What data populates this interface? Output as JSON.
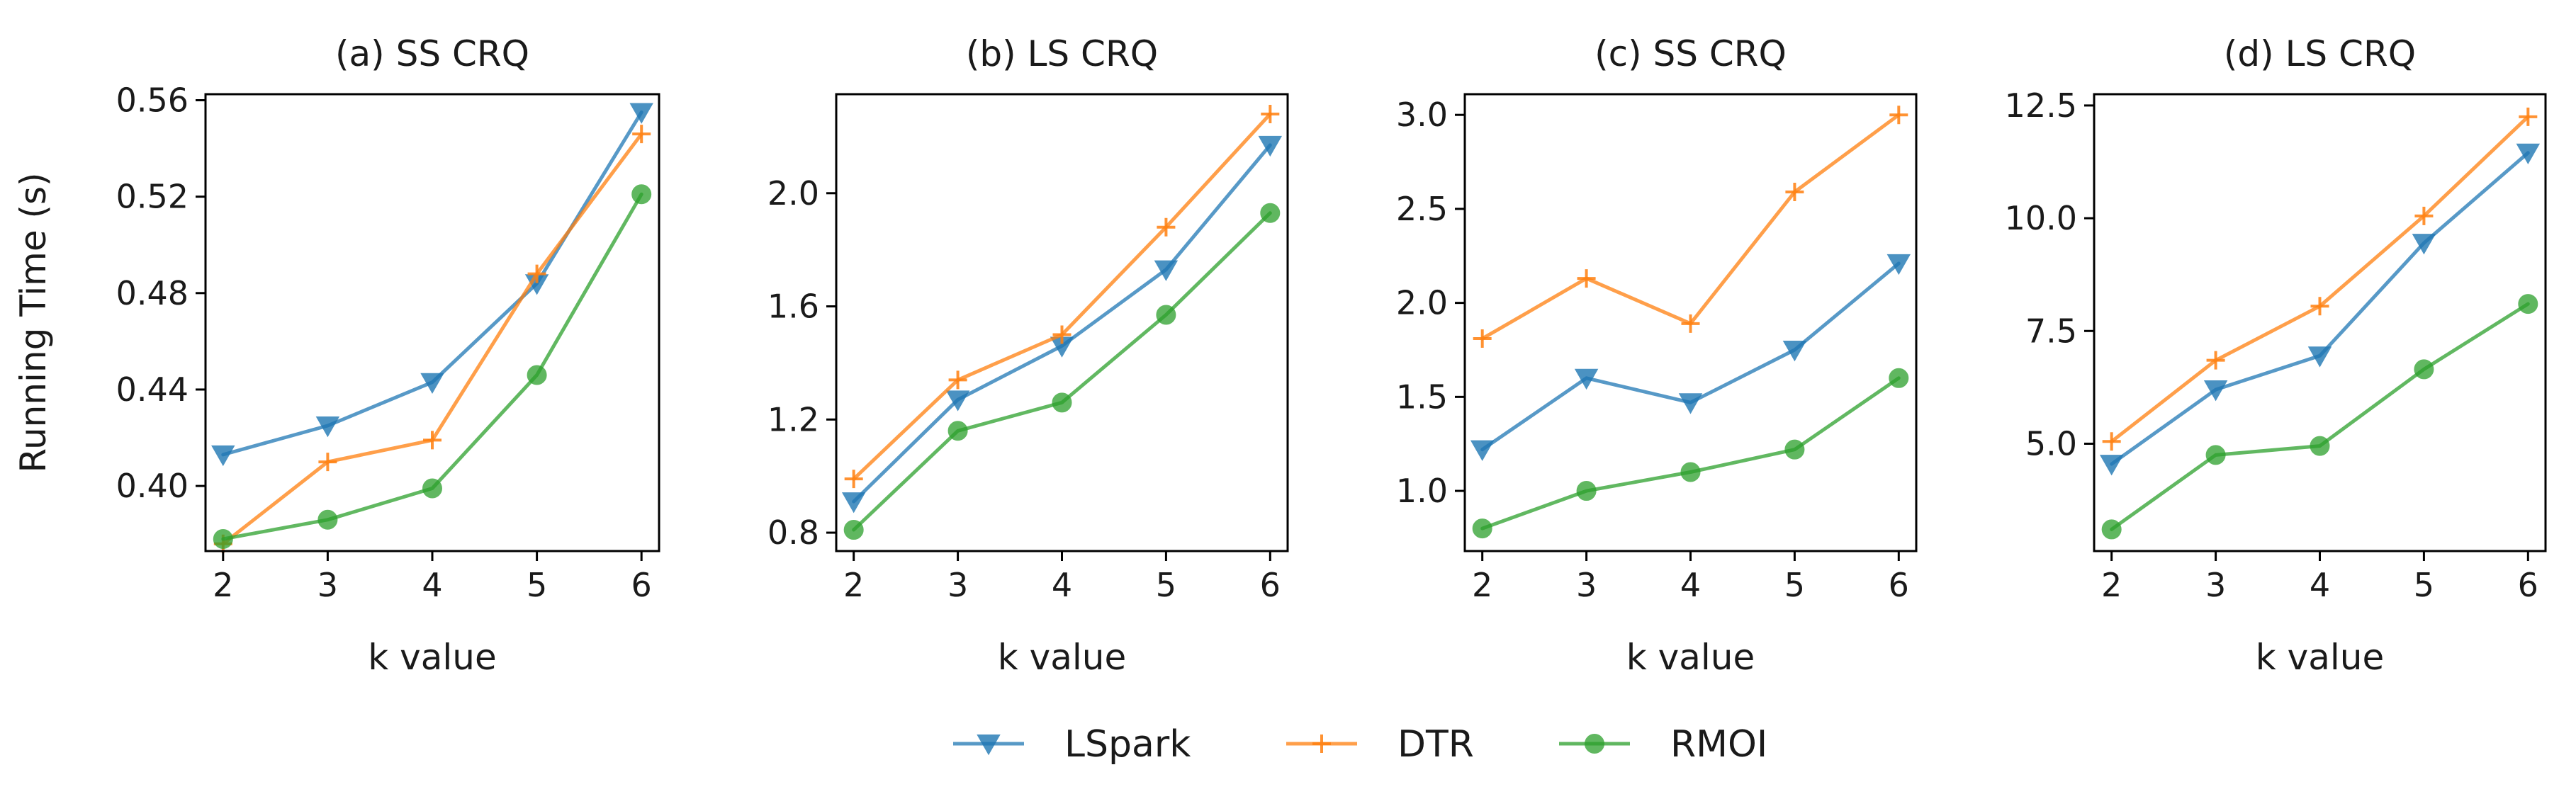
{
  "figure": {
    "ylabel": "Running Time (s)",
    "legend_position": "bottom-center"
  },
  "series_styles": [
    {
      "name": "LSpark",
      "color": "#1f77b4",
      "marker": "triangle-down-icon"
    },
    {
      "name": "DTR",
      "color": "#ff7f0e",
      "marker": "plus-icon"
    },
    {
      "name": "RMOI",
      "color": "#2ca02c",
      "marker": "circle-icon"
    }
  ],
  "chart_data": [
    {
      "type": "line",
      "title": "(a) SS CRQ",
      "xlabel": "k value",
      "ylabel": "Running Time (s)",
      "x": [
        2,
        3,
        4,
        5,
        6
      ],
      "xticks": [
        "2",
        "3",
        "4",
        "5",
        "6"
      ],
      "yticks": [
        0.4,
        0.44,
        0.48,
        0.52,
        0.56
      ],
      "ytick_labels": [
        "0.40",
        "0.44",
        "0.48",
        "0.52",
        "0.56"
      ],
      "ylim": [
        0.373,
        0.5625
      ],
      "series": [
        {
          "name": "LSpark",
          "values": [
            0.413,
            0.425,
            0.443,
            0.484,
            0.555
          ]
        },
        {
          "name": "DTR",
          "values": [
            0.376,
            0.41,
            0.419,
            0.488,
            0.546
          ]
        },
        {
          "name": "RMOI",
          "values": [
            0.378,
            0.386,
            0.399,
            0.446,
            0.521
          ]
        }
      ]
    },
    {
      "type": "line",
      "title": "(b) LS CRQ",
      "xlabel": "k value",
      "ylabel": "",
      "x": [
        2,
        3,
        4,
        5,
        6
      ],
      "xticks": [
        "2",
        "3",
        "4",
        "5",
        "6"
      ],
      "yticks": [
        0.8,
        1.2,
        1.6,
        2.0
      ],
      "ytick_labels": [
        "0.8",
        "1.2",
        "1.6",
        "2.0"
      ],
      "ylim": [
        0.735,
        2.35
      ],
      "series": [
        {
          "name": "LSpark",
          "values": [
            0.91,
            1.27,
            1.46,
            1.73,
            2.17
          ]
        },
        {
          "name": "DTR",
          "values": [
            0.99,
            1.34,
            1.5,
            1.88,
            2.28
          ]
        },
        {
          "name": "RMOI",
          "values": [
            0.81,
            1.16,
            1.26,
            1.57,
            1.93
          ]
        }
      ]
    },
    {
      "type": "line",
      "title": "(c) SS CRQ",
      "xlabel": "k value",
      "ylabel": "",
      "x": [
        2,
        3,
        4,
        5,
        6
      ],
      "xticks": [
        "2",
        "3",
        "4",
        "5",
        "6"
      ],
      "yticks": [
        1.0,
        1.5,
        2.0,
        2.5,
        3.0
      ],
      "ytick_labels": [
        "1.0",
        "1.5",
        "2.0",
        "2.5",
        "3.0"
      ],
      "ylim": [
        0.68,
        3.11
      ],
      "series": [
        {
          "name": "LSpark",
          "values": [
            1.22,
            1.6,
            1.47,
            1.75,
            2.21
          ]
        },
        {
          "name": "DTR",
          "values": [
            1.81,
            2.13,
            1.89,
            2.59,
            3.0
          ]
        },
        {
          "name": "RMOI",
          "values": [
            0.8,
            1.0,
            1.1,
            1.22,
            1.6
          ]
        }
      ]
    },
    {
      "type": "line",
      "title": "(d) LS CRQ",
      "xlabel": "k value",
      "ylabel": "",
      "x": [
        2,
        3,
        4,
        5,
        6
      ],
      "xticks": [
        "2",
        "3",
        "4",
        "5",
        "6"
      ],
      "yticks": [
        5.0,
        7.5,
        10.0,
        12.5
      ],
      "ytick_labels": [
        "5.0",
        "7.5",
        "10.0",
        "12.5"
      ],
      "ylim": [
        2.62,
        12.75
      ],
      "series": [
        {
          "name": "LSpark",
          "values": [
            4.55,
            6.2,
            6.95,
            9.45,
            11.45
          ]
        },
        {
          "name": "DTR",
          "values": [
            5.05,
            6.85,
            8.05,
            10.05,
            12.25
          ]
        },
        {
          "name": "RMOI",
          "values": [
            3.1,
            4.75,
            4.95,
            6.65,
            8.1
          ]
        }
      ]
    }
  ]
}
